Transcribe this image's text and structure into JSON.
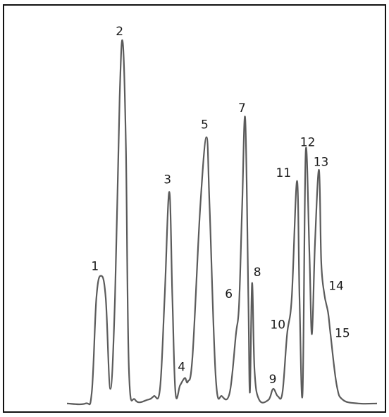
{
  "chart_data": {
    "type": "line",
    "title": "",
    "xlabel": "",
    "ylabel": "",
    "grid": false,
    "legend": "none",
    "line_color": "#5b5b5b",
    "peaks": [
      {
        "label": "1",
        "x": 0.11,
        "y": 0.36
      },
      {
        "label": "2",
        "x": 0.18,
        "y": 1.0
      },
      {
        "label": "3",
        "x": 0.33,
        "y": 0.59
      },
      {
        "label": "4",
        "x": 0.38,
        "y": 0.08
      },
      {
        "label": "5",
        "x": 0.45,
        "y": 0.74
      },
      {
        "label": "6",
        "x": 0.555,
        "y": 0.28
      },
      {
        "label": "7",
        "x": 0.575,
        "y": 0.79
      },
      {
        "label": "8",
        "x": 0.597,
        "y": 0.34
      },
      {
        "label": "9",
        "x": 0.665,
        "y": 0.05
      },
      {
        "label": "10",
        "x": 0.71,
        "y": 0.2
      },
      {
        "label": "11",
        "x": 0.742,
        "y": 0.62
      },
      {
        "label": "12",
        "x": 0.77,
        "y": 0.7
      },
      {
        "label": "13",
        "x": 0.813,
        "y": 0.65
      },
      {
        "label": "14",
        "x": 0.83,
        "y": 0.31
      },
      {
        "label": "15",
        "x": 0.85,
        "y": 0.2
      }
    ],
    "trace": [
      [
        0.0,
        0.01
      ],
      [
        0.06,
        0.01
      ],
      [
        0.08,
        0.04
      ],
      [
        0.095,
        0.3
      ],
      [
        0.11,
        0.36
      ],
      [
        0.125,
        0.3
      ],
      [
        0.14,
        0.05
      ],
      [
        0.155,
        0.3
      ],
      [
        0.17,
        0.85
      ],
      [
        0.18,
        1.0
      ],
      [
        0.19,
        0.72
      ],
      [
        0.2,
        0.1
      ],
      [
        0.22,
        0.02
      ],
      [
        0.26,
        0.02
      ],
      [
        0.28,
        0.03
      ],
      [
        0.3,
        0.05
      ],
      [
        0.315,
        0.3
      ],
      [
        0.33,
        0.59
      ],
      [
        0.34,
        0.3
      ],
      [
        0.35,
        0.04
      ],
      [
        0.365,
        0.06
      ],
      [
        0.38,
        0.08
      ],
      [
        0.39,
        0.07
      ],
      [
        0.405,
        0.14
      ],
      [
        0.43,
        0.55
      ],
      [
        0.45,
        0.74
      ],
      [
        0.46,
        0.55
      ],
      [
        0.48,
        0.08
      ],
      [
        0.5,
        0.03
      ],
      [
        0.525,
        0.04
      ],
      [
        0.545,
        0.2
      ],
      [
        0.555,
        0.28
      ],
      [
        0.565,
        0.55
      ],
      [
        0.575,
        0.79
      ],
      [
        0.585,
        0.3
      ],
      [
        0.59,
        0.04
      ],
      [
        0.597,
        0.34
      ],
      [
        0.605,
        0.1
      ],
      [
        0.62,
        0.02
      ],
      [
        0.65,
        0.02
      ],
      [
        0.665,
        0.05
      ],
      [
        0.68,
        0.03
      ],
      [
        0.695,
        0.04
      ],
      [
        0.71,
        0.2
      ],
      [
        0.725,
        0.3
      ],
      [
        0.742,
        0.62
      ],
      [
        0.75,
        0.3
      ],
      [
        0.76,
        0.04
      ],
      [
        0.77,
        0.7
      ],
      [
        0.782,
        0.42
      ],
      [
        0.79,
        0.2
      ],
      [
        0.8,
        0.45
      ],
      [
        0.813,
        0.65
      ],
      [
        0.82,
        0.4
      ],
      [
        0.83,
        0.31
      ],
      [
        0.842,
        0.26
      ],
      [
        0.85,
        0.2
      ],
      [
        0.87,
        0.06
      ],
      [
        0.89,
        0.02
      ],
      [
        0.94,
        0.01
      ],
      [
        1.0,
        0.01
      ]
    ]
  }
}
